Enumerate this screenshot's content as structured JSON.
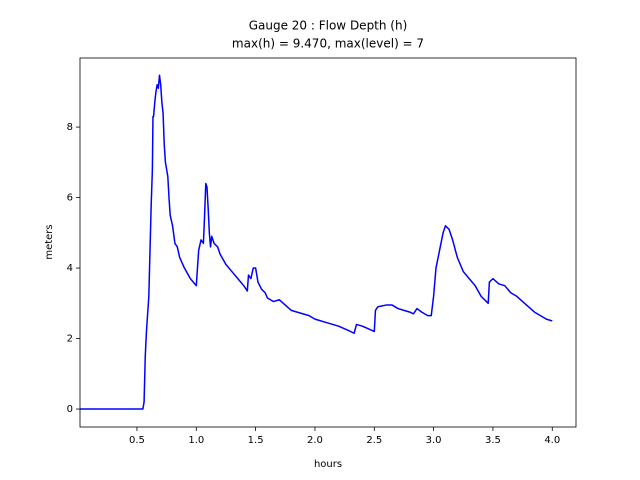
{
  "chart_data": {
    "type": "line",
    "title": "Gauge 20 : Flow Depth (h)",
    "subtitle": "max(h) =   9.470,    max(level) = 7",
    "x_label": "hours",
    "y_label": "meters",
    "x": [
      0.02,
      0.55,
      0.56,
      0.57,
      0.58,
      0.6,
      0.61,
      0.62,
      0.63,
      0.635,
      0.64,
      0.65,
      0.66,
      0.67,
      0.68,
      0.69,
      0.7,
      0.71,
      0.72,
      0.73,
      0.74,
      0.76,
      0.77,
      0.78,
      0.8,
      0.82,
      0.84,
      0.86,
      0.9,
      0.95,
      1.0,
      1.01,
      1.02,
      1.04,
      1.06,
      1.07,
      1.08,
      1.09,
      1.1,
      1.11,
      1.12,
      1.13,
      1.15,
      1.18,
      1.2,
      1.25,
      1.3,
      1.35,
      1.4,
      1.43,
      1.44,
      1.46,
      1.48,
      1.5,
      1.52,
      1.55,
      1.58,
      1.6,
      1.65,
      1.7,
      1.75,
      1.8,
      1.85,
      1.9,
      1.95,
      2.0,
      2.1,
      2.2,
      2.3,
      2.33,
      2.35,
      2.4,
      2.5,
      2.51,
      2.53,
      2.6,
      2.65,
      2.7,
      2.75,
      2.8,
      2.83,
      2.86,
      2.9,
      2.95,
      2.98,
      3.0,
      3.02,
      3.05,
      3.08,
      3.1,
      3.13,
      3.16,
      3.2,
      3.25,
      3.3,
      3.35,
      3.4,
      3.46,
      3.47,
      3.5,
      3.55,
      3.6,
      3.65,
      3.7,
      3.75,
      3.8,
      3.85,
      3.9,
      3.95,
      4.0
    ],
    "series": [
      {
        "name": "h",
        "color": "#0000ff",
        "values": [
          0,
          0,
          0.2,
          1.5,
          2.2,
          3.2,
          4.5,
          5.8,
          6.8,
          8.3,
          8.3,
          8.7,
          9.0,
          9.2,
          9.1,
          9.47,
          9.2,
          8.7,
          8.4,
          7.5,
          7.0,
          6.6,
          6.0,
          5.5,
          5.2,
          4.7,
          4.6,
          4.3,
          4.0,
          3.7,
          3.5,
          4.0,
          4.5,
          4.8,
          4.7,
          5.5,
          6.4,
          6.3,
          5.7,
          5.0,
          4.6,
          4.9,
          4.7,
          4.6,
          4.4,
          4.1,
          3.9,
          3.7,
          3.5,
          3.35,
          3.8,
          3.7,
          4.0,
          4.0,
          3.6,
          3.4,
          3.3,
          3.15,
          3.05,
          3.1,
          2.95,
          2.8,
          2.75,
          2.7,
          2.65,
          2.55,
          2.45,
          2.35,
          2.2,
          2.15,
          2.4,
          2.35,
          2.2,
          2.8,
          2.9,
          2.95,
          2.95,
          2.85,
          2.8,
          2.75,
          2.7,
          2.85,
          2.75,
          2.65,
          2.65,
          3.2,
          4.0,
          4.5,
          5.0,
          5.2,
          5.1,
          4.8,
          4.3,
          3.9,
          3.7,
          3.5,
          3.2,
          3.0,
          3.6,
          3.7,
          3.55,
          3.5,
          3.3,
          3.2,
          3.05,
          2.9,
          2.75,
          2.65,
          2.55,
          2.5
        ]
      }
    ],
    "xlim": [
      0.02,
      4.2
    ],
    "ylim": [
      -0.51,
      9.96
    ],
    "xticks": [
      0.5,
      {
        "value": 1,
        "label": "1.0"
      },
      1.5,
      {
        "value": 2,
        "label": "2.0"
      },
      2.5,
      {
        "value": 3,
        "label": "3.0"
      },
      3.5,
      {
        "value": 4,
        "label": "4.0"
      }
    ],
    "yticks": [
      0,
      2,
      4,
      6,
      8
    ]
  }
}
